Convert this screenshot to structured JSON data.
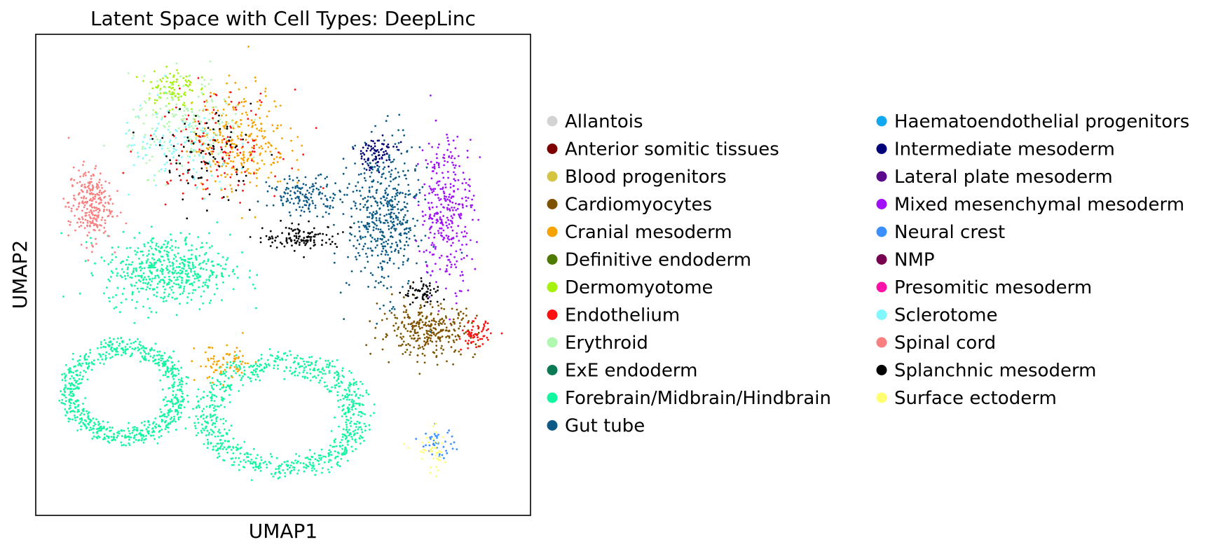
{
  "chart_data": {
    "type": "scatter",
    "title": "Latent Space with Cell Types: DeepLinc",
    "xlabel": "UMAP1",
    "ylabel": "UMAP2",
    "xticks": [],
    "yticks": [],
    "grid": false,
    "legend_position": "right (outside plot, two columns)",
    "categories": [
      {
        "name": "Allantois",
        "color": "#d3d3d3"
      },
      {
        "name": "Anterior somitic tissues",
        "color": "#7f0000"
      },
      {
        "name": "Blood progenitors",
        "color": "#d4c440"
      },
      {
        "name": "Cardiomyocytes",
        "color": "#7f5200"
      },
      {
        "name": "Cranial mesoderm",
        "color": "#f6a300"
      },
      {
        "name": "Definitive endoderm",
        "color": "#4f7a00"
      },
      {
        "name": "Dermomyotome",
        "color": "#a6f20a"
      },
      {
        "name": "Endothelium",
        "color": "#ff1010"
      },
      {
        "name": "Erythroid",
        "color": "#b0f8b0"
      },
      {
        "name": "ExE endoderm",
        "color": "#0a7a55"
      },
      {
        "name": "Forebrain/Midbrain/Hindbrain",
        "color": "#10f7a0"
      },
      {
        "name": "Gut tube",
        "color": "#0b5a85"
      },
      {
        "name": "Haematoendothelial progenitors",
        "color": "#12a8f0"
      },
      {
        "name": "Intermediate mesoderm",
        "color": "#000078"
      },
      {
        "name": "Lateral plate mesoderm",
        "color": "#5a0a8a"
      },
      {
        "name": "Mixed mesenchymal mesoderm",
        "color": "#a010f8"
      },
      {
        "name": "Neural crest",
        "color": "#3a90ff"
      },
      {
        "name": "NMP",
        "color": "#780050"
      },
      {
        "name": "Presomitic mesoderm",
        "color": "#ff10a8"
      },
      {
        "name": "Sclerotome",
        "color": "#7ff8ff"
      },
      {
        "name": "Spinal cord",
        "color": "#f88080"
      },
      {
        "name": "Splanchnic mesoderm",
        "color": "#000000"
      },
      {
        "name": "Surface ectoderm",
        "color": "#ffff70"
      }
    ],
    "xlim": [
      0,
      10
    ],
    "ylim": [
      0,
      10
    ],
    "clusters": [
      {
        "category": "Forebrain/Midbrain/Hindbrain",
        "cx": 1.7,
        "cy": 2.5,
        "rx": 1.3,
        "ry": 1.1,
        "n": 700,
        "ring": true
      },
      {
        "category": "Forebrain/Midbrain/Hindbrain",
        "cx": 5.0,
        "cy": 2.0,
        "rx": 1.8,
        "ry": 1.3,
        "n": 800,
        "ring": true
      },
      {
        "category": "Forebrain/Midbrain/Hindbrain",
        "cx": 2.6,
        "cy": 5.1,
        "rx": 1.3,
        "ry": 0.75,
        "n": 520,
        "ring": false
      },
      {
        "category": "Spinal cord",
        "cx": 1.0,
        "cy": 6.5,
        "rx": 0.45,
        "ry": 0.8,
        "n": 260,
        "ring": false
      },
      {
        "category": "Cranial mesoderm",
        "cx": 4.1,
        "cy": 7.9,
        "rx": 1.0,
        "ry": 1.1,
        "n": 280,
        "ring": false
      },
      {
        "category": "Dermomyotome",
        "cx": 2.7,
        "cy": 9.0,
        "rx": 0.5,
        "ry": 0.5,
        "n": 90,
        "ring": false
      },
      {
        "category": "Erythroid",
        "cx": 3.0,
        "cy": 8.2,
        "rx": 1.2,
        "ry": 1.0,
        "n": 180,
        "ring": false
      },
      {
        "category": "Sclerotome",
        "cx": 2.8,
        "cy": 7.6,
        "rx": 1.2,
        "ry": 1.0,
        "n": 110,
        "ring": false
      },
      {
        "category": "Endothelium",
        "cx": 3.6,
        "cy": 7.8,
        "rx": 1.4,
        "ry": 1.1,
        "n": 130,
        "ring": false
      },
      {
        "category": "Gut tube",
        "cx": 7.1,
        "cy": 6.2,
        "rx": 0.75,
        "ry": 1.6,
        "n": 480,
        "ring": false
      },
      {
        "category": "Gut tube",
        "cx": 5.5,
        "cy": 6.7,
        "rx": 0.8,
        "ry": 0.4,
        "n": 150,
        "ring": false
      },
      {
        "category": "Mixed mesenchymal mesoderm",
        "cx": 8.4,
        "cy": 6.4,
        "rx": 0.55,
        "ry": 1.6,
        "n": 320,
        "ring": false
      },
      {
        "category": "Intermediate mesoderm",
        "cx": 6.9,
        "cy": 7.6,
        "rx": 0.45,
        "ry": 0.35,
        "n": 80,
        "ring": false
      },
      {
        "category": "Cardiomyocytes",
        "cx": 8.0,
        "cy": 3.8,
        "rx": 1.0,
        "ry": 0.55,
        "n": 300,
        "ring": false
      },
      {
        "category": "Splanchnic mesoderm",
        "cx": 5.4,
        "cy": 5.8,
        "rx": 0.8,
        "ry": 0.25,
        "n": 120,
        "ring": false
      },
      {
        "category": "Splanchnic mesoderm",
        "cx": 7.9,
        "cy": 4.6,
        "rx": 0.4,
        "ry": 0.25,
        "n": 60,
        "ring": false
      },
      {
        "category": "Splanchnic mesoderm",
        "cx": 3.4,
        "cy": 7.6,
        "rx": 1.0,
        "ry": 1.0,
        "n": 90,
        "ring": false
      },
      {
        "category": "Endothelium",
        "cx": 9.0,
        "cy": 3.7,
        "rx": 0.3,
        "ry": 0.3,
        "n": 60,
        "ring": false
      },
      {
        "category": "Neural crest",
        "cx": 8.2,
        "cy": 1.4,
        "rx": 0.35,
        "ry": 0.3,
        "n": 40,
        "ring": false
      },
      {
        "category": "Surface ectoderm",
        "cx": 8.1,
        "cy": 1.2,
        "rx": 0.4,
        "ry": 0.5,
        "n": 40,
        "ring": false
      },
      {
        "category": "Cranial mesoderm",
        "cx": 3.8,
        "cy": 3.1,
        "rx": 0.6,
        "ry": 0.4,
        "n": 70,
        "ring": false
      }
    ]
  }
}
